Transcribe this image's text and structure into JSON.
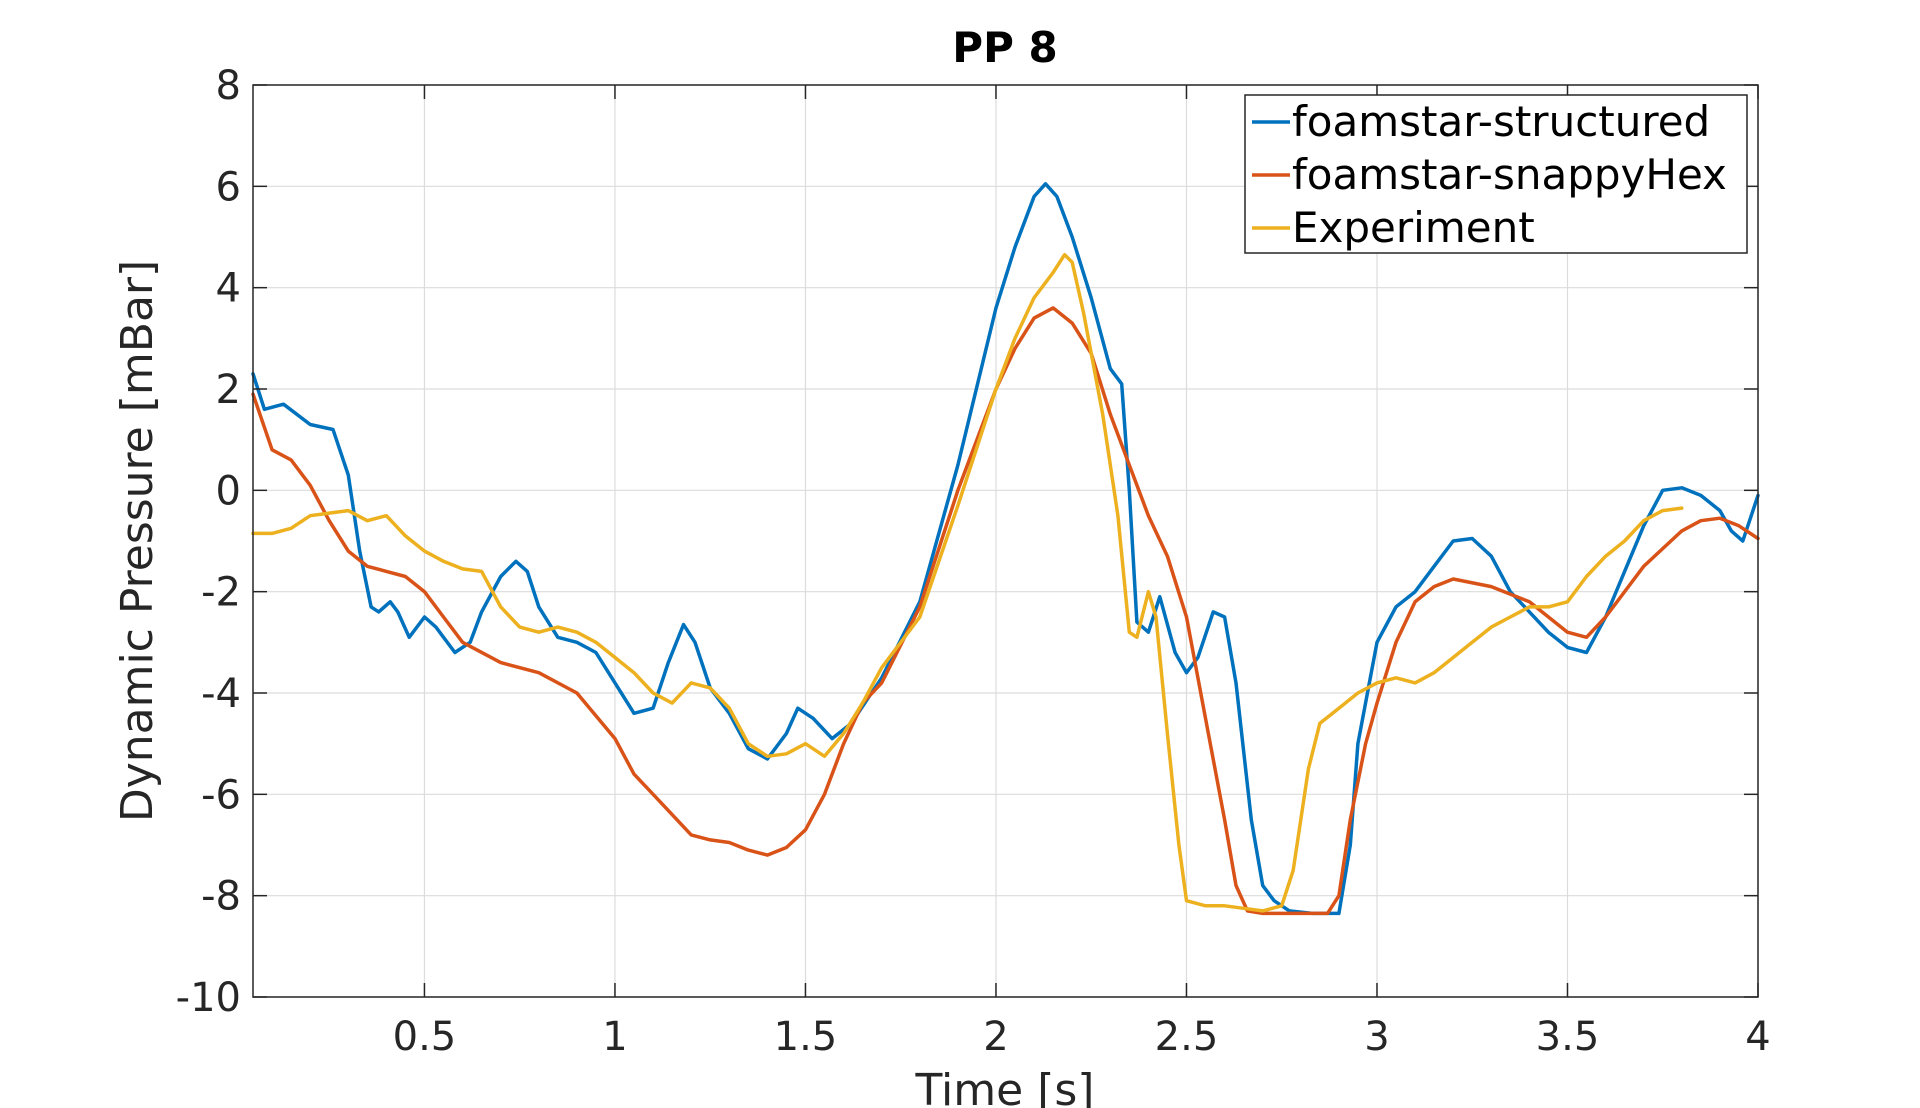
{
  "chart_data": {
    "type": "line",
    "title": "PP 8",
    "xlabel": "Time [s]",
    "ylabel": "Dynamic Pressure [mBar]",
    "xlim": [
      0.05,
      4
    ],
    "ylim": [
      -10,
      8
    ],
    "xticks": [
      0.5,
      1,
      1.5,
      2,
      2.5,
      3,
      3.5,
      4
    ],
    "xtick_labels": [
      "0.5",
      "1",
      "1.5",
      "2",
      "2.5",
      "3",
      "3.5",
      "4"
    ],
    "yticks": [
      -10,
      -8,
      -6,
      -4,
      -2,
      0,
      2,
      4,
      6,
      8
    ],
    "ytick_labels": [
      "-10",
      "-8",
      "-6",
      "-4",
      "-2",
      "0",
      "2",
      "4",
      "6",
      "8"
    ],
    "grid": true,
    "legend_position": "top-right",
    "series": [
      {
        "name": "foamstar-structured",
        "color": "#0072bd",
        "points": [
          [
            0.05,
            2.3
          ],
          [
            0.08,
            1.6
          ],
          [
            0.13,
            1.7
          ],
          [
            0.2,
            1.3
          ],
          [
            0.26,
            1.2
          ],
          [
            0.3,
            0.3
          ],
          [
            0.33,
            -1.2
          ],
          [
            0.36,
            -2.3
          ],
          [
            0.38,
            -2.4
          ],
          [
            0.41,
            -2.2
          ],
          [
            0.43,
            -2.4
          ],
          [
            0.46,
            -2.9
          ],
          [
            0.5,
            -2.5
          ],
          [
            0.53,
            -2.7
          ],
          [
            0.58,
            -3.2
          ],
          [
            0.62,
            -3.0
          ],
          [
            0.65,
            -2.4
          ],
          [
            0.7,
            -1.7
          ],
          [
            0.74,
            -1.4
          ],
          [
            0.77,
            -1.6
          ],
          [
            0.8,
            -2.3
          ],
          [
            0.85,
            -2.9
          ],
          [
            0.9,
            -3.0
          ],
          [
            0.95,
            -3.2
          ],
          [
            1.0,
            -3.8
          ],
          [
            1.05,
            -4.4
          ],
          [
            1.1,
            -4.3
          ],
          [
            1.14,
            -3.4
          ],
          [
            1.18,
            -2.65
          ],
          [
            1.21,
            -3.0
          ],
          [
            1.25,
            -3.9
          ],
          [
            1.3,
            -4.4
          ],
          [
            1.35,
            -5.1
          ],
          [
            1.4,
            -5.3
          ],
          [
            1.45,
            -4.8
          ],
          [
            1.48,
            -4.3
          ],
          [
            1.52,
            -4.5
          ],
          [
            1.57,
            -4.9
          ],
          [
            1.62,
            -4.6
          ],
          [
            1.7,
            -3.7
          ],
          [
            1.8,
            -2.2
          ],
          [
            1.9,
            0.5
          ],
          [
            2.0,
            3.6
          ],
          [
            2.05,
            4.8
          ],
          [
            2.1,
            5.8
          ],
          [
            2.13,
            6.05
          ],
          [
            2.16,
            5.8
          ],
          [
            2.2,
            5.0
          ],
          [
            2.25,
            3.8
          ],
          [
            2.3,
            2.4
          ],
          [
            2.33,
            2.1
          ],
          [
            2.35,
            0.0
          ],
          [
            2.37,
            -2.6
          ],
          [
            2.4,
            -2.8
          ],
          [
            2.43,
            -2.1
          ],
          [
            2.47,
            -3.2
          ],
          [
            2.5,
            -3.6
          ],
          [
            2.53,
            -3.3
          ],
          [
            2.57,
            -2.4
          ],
          [
            2.6,
            -2.5
          ],
          [
            2.63,
            -3.8
          ],
          [
            2.67,
            -6.5
          ],
          [
            2.7,
            -7.8
          ],
          [
            2.73,
            -8.1
          ],
          [
            2.77,
            -8.3
          ],
          [
            2.83,
            -8.35
          ],
          [
            2.9,
            -8.35
          ],
          [
            2.93,
            -7.0
          ],
          [
            2.95,
            -5.0
          ],
          [
            3.0,
            -3.0
          ],
          [
            3.05,
            -2.3
          ],
          [
            3.1,
            -2.0
          ],
          [
            3.15,
            -1.5
          ],
          [
            3.2,
            -1.0
          ],
          [
            3.25,
            -0.95
          ],
          [
            3.3,
            -1.3
          ],
          [
            3.35,
            -2.0
          ],
          [
            3.4,
            -2.4
          ],
          [
            3.45,
            -2.8
          ],
          [
            3.5,
            -3.1
          ],
          [
            3.55,
            -3.2
          ],
          [
            3.6,
            -2.5
          ],
          [
            3.65,
            -1.6
          ],
          [
            3.7,
            -0.7
          ],
          [
            3.75,
            0.0
          ],
          [
            3.8,
            0.05
          ],
          [
            3.85,
            -0.1
          ],
          [
            3.9,
            -0.4
          ],
          [
            3.93,
            -0.8
          ],
          [
            3.96,
            -1.0
          ],
          [
            4.0,
            -0.1
          ]
        ]
      },
      {
        "name": "foamstar-snappyHex",
        "color": "#d95319",
        "points": [
          [
            0.05,
            1.9
          ],
          [
            0.1,
            0.8
          ],
          [
            0.15,
            0.6
          ],
          [
            0.2,
            0.1
          ],
          [
            0.25,
            -0.6
          ],
          [
            0.3,
            -1.2
          ],
          [
            0.35,
            -1.5
          ],
          [
            0.4,
            -1.6
          ],
          [
            0.45,
            -1.7
          ],
          [
            0.5,
            -2.0
          ],
          [
            0.55,
            -2.5
          ],
          [
            0.6,
            -3.0
          ],
          [
            0.7,
            -3.4
          ],
          [
            0.8,
            -3.6
          ],
          [
            0.9,
            -4.0
          ],
          [
            1.0,
            -4.9
          ],
          [
            1.05,
            -5.6
          ],
          [
            1.1,
            -6.0
          ],
          [
            1.15,
            -6.4
          ],
          [
            1.2,
            -6.8
          ],
          [
            1.25,
            -6.9
          ],
          [
            1.3,
            -6.95
          ],
          [
            1.35,
            -7.1
          ],
          [
            1.4,
            -7.2
          ],
          [
            1.45,
            -7.05
          ],
          [
            1.5,
            -6.7
          ],
          [
            1.55,
            -6.0
          ],
          [
            1.6,
            -5.0
          ],
          [
            1.65,
            -4.2
          ],
          [
            1.7,
            -3.8
          ],
          [
            1.8,
            -2.3
          ],
          [
            1.9,
            0.0
          ],
          [
            2.0,
            2.0
          ],
          [
            2.05,
            2.8
          ],
          [
            2.1,
            3.4
          ],
          [
            2.15,
            3.6
          ],
          [
            2.2,
            3.3
          ],
          [
            2.25,
            2.7
          ],
          [
            2.3,
            1.5
          ],
          [
            2.35,
            0.5
          ],
          [
            2.4,
            -0.5
          ],
          [
            2.45,
            -1.3
          ],
          [
            2.5,
            -2.5
          ],
          [
            2.55,
            -4.5
          ],
          [
            2.6,
            -6.5
          ],
          [
            2.63,
            -7.8
          ],
          [
            2.66,
            -8.3
          ],
          [
            2.7,
            -8.35
          ],
          [
            2.8,
            -8.35
          ],
          [
            2.87,
            -8.35
          ],
          [
            2.9,
            -8.0
          ],
          [
            2.93,
            -6.5
          ],
          [
            2.97,
            -5.0
          ],
          [
            3.0,
            -4.2
          ],
          [
            3.05,
            -3.0
          ],
          [
            3.1,
            -2.2
          ],
          [
            3.15,
            -1.9
          ],
          [
            3.2,
            -1.75
          ],
          [
            3.3,
            -1.9
          ],
          [
            3.4,
            -2.2
          ],
          [
            3.5,
            -2.8
          ],
          [
            3.55,
            -2.9
          ],
          [
            3.6,
            -2.5
          ],
          [
            3.7,
            -1.5
          ],
          [
            3.8,
            -0.8
          ],
          [
            3.85,
            -0.6
          ],
          [
            3.9,
            -0.55
          ],
          [
            3.95,
            -0.7
          ],
          [
            4.0,
            -0.95
          ]
        ]
      },
      {
        "name": "Experiment",
        "color": "#edb120",
        "points": [
          [
            0.05,
            -0.85
          ],
          [
            0.1,
            -0.85
          ],
          [
            0.15,
            -0.75
          ],
          [
            0.2,
            -0.5
          ],
          [
            0.25,
            -0.45
          ],
          [
            0.3,
            -0.4
          ],
          [
            0.35,
            -0.6
          ],
          [
            0.4,
            -0.5
          ],
          [
            0.45,
            -0.9
          ],
          [
            0.5,
            -1.2
          ],
          [
            0.55,
            -1.4
          ],
          [
            0.6,
            -1.55
          ],
          [
            0.65,
            -1.6
          ],
          [
            0.7,
            -2.3
          ],
          [
            0.75,
            -2.7
          ],
          [
            0.8,
            -2.8
          ],
          [
            0.85,
            -2.7
          ],
          [
            0.9,
            -2.8
          ],
          [
            0.95,
            -3.0
          ],
          [
            1.0,
            -3.3
          ],
          [
            1.05,
            -3.6
          ],
          [
            1.1,
            -4.0
          ],
          [
            1.15,
            -4.2
          ],
          [
            1.2,
            -3.8
          ],
          [
            1.25,
            -3.9
          ],
          [
            1.3,
            -4.3
          ],
          [
            1.35,
            -5.0
          ],
          [
            1.4,
            -5.25
          ],
          [
            1.45,
            -5.2
          ],
          [
            1.5,
            -5.0
          ],
          [
            1.55,
            -5.25
          ],
          [
            1.6,
            -4.8
          ],
          [
            1.65,
            -4.2
          ],
          [
            1.7,
            -3.5
          ],
          [
            1.8,
            -2.5
          ],
          [
            1.9,
            -0.3
          ],
          [
            2.0,
            2.0
          ],
          [
            2.05,
            3.0
          ],
          [
            2.1,
            3.8
          ],
          [
            2.15,
            4.3
          ],
          [
            2.18,
            4.65
          ],
          [
            2.2,
            4.5
          ],
          [
            2.23,
            3.5
          ],
          [
            2.28,
            1.5
          ],
          [
            2.32,
            -0.5
          ],
          [
            2.35,
            -2.8
          ],
          [
            2.37,
            -2.9
          ],
          [
            2.4,
            -2.0
          ],
          [
            2.42,
            -2.5
          ],
          [
            2.45,
            -4.8
          ],
          [
            2.48,
            -7.0
          ],
          [
            2.5,
            -8.1
          ],
          [
            2.55,
            -8.2
          ],
          [
            2.6,
            -8.2
          ],
          [
            2.65,
            -8.25
          ],
          [
            2.7,
            -8.3
          ],
          [
            2.75,
            -8.2
          ],
          [
            2.78,
            -7.5
          ],
          [
            2.82,
            -5.5
          ],
          [
            2.85,
            -4.6
          ],
          [
            2.9,
            -4.3
          ],
          [
            2.95,
            -4.0
          ],
          [
            3.0,
            -3.8
          ],
          [
            3.05,
            -3.7
          ],
          [
            3.1,
            -3.8
          ],
          [
            3.15,
            -3.6
          ],
          [
            3.2,
            -3.3
          ],
          [
            3.25,
            -3.0
          ],
          [
            3.3,
            -2.7
          ],
          [
            3.35,
            -2.5
          ],
          [
            3.4,
            -2.3
          ],
          [
            3.45,
            -2.3
          ],
          [
            3.5,
            -2.2
          ],
          [
            3.55,
            -1.7
          ],
          [
            3.6,
            -1.3
          ],
          [
            3.65,
            -1.0
          ],
          [
            3.7,
            -0.6
          ],
          [
            3.75,
            -0.4
          ],
          [
            3.8,
            -0.35
          ]
        ]
      }
    ]
  }
}
